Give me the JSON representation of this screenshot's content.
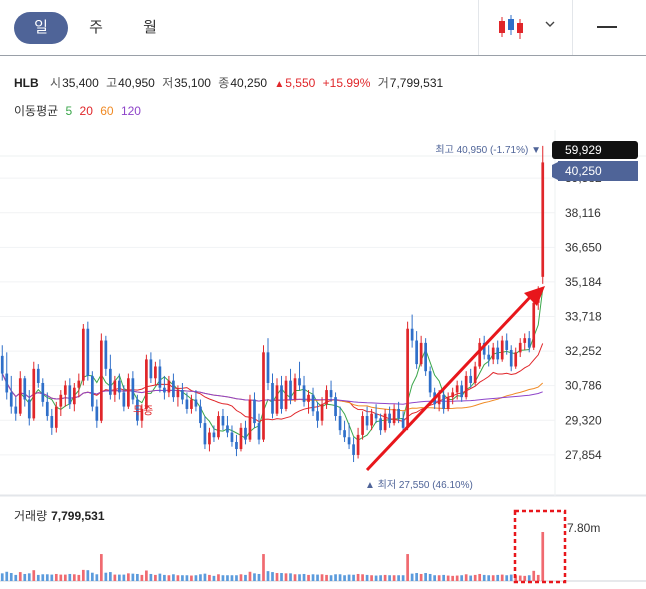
{
  "tabs": [
    {
      "label": "일",
      "active": true
    },
    {
      "label": "주",
      "active": false
    },
    {
      "label": "월",
      "active": false
    }
  ],
  "toolbar": {
    "chart_type_icon": "candlestick-icon",
    "dropdown_icon": "chevron-down-icon",
    "menu_icon": "minus-icon"
  },
  "stock": {
    "name": "HLB",
    "open_label": "시",
    "open": "35,400",
    "high_label": "고",
    "high": "40,950",
    "low_label": "저",
    "low": "35,100",
    "close_label": "종",
    "close": "40,250",
    "change_arrow": "▲",
    "change": "5,550",
    "change_pct": "+15.99%",
    "volume_label": "거",
    "volume": "7,799,531"
  },
  "moving_average": {
    "label": "이동평균",
    "periods": [
      {
        "text": "5",
        "color": "#3aa64a"
      },
      {
        "text": "20",
        "color": "#e0262a"
      },
      {
        "text": "60",
        "color": "#f08a24"
      },
      {
        "text": "120",
        "color": "#8e44c9"
      }
    ]
  },
  "price_axis": {
    "ticks": [
      "39,582",
      "38,116",
      "36,650",
      "35,184",
      "33,718",
      "32,252",
      "30,786",
      "29,320",
      "27,854"
    ],
    "top_badge": "59,929",
    "current_badge": "40,250"
  },
  "annotations": {
    "max_label": "최고 40,950 (-1.71%) ▼",
    "min_label": "▲ 최저 27,550 (46.10%)",
    "no_increase_label": "무증"
  },
  "volume": {
    "label": "거래량",
    "value": "7,799,531",
    "axis_label": "7.80m"
  },
  "colors": {
    "up": "#f06a70",
    "down": "#2f6fc9",
    "accent": "#4f6498",
    "highlight": "#e0262a"
  },
  "chart_data": {
    "type": "candlestick",
    "y_range": [
      27000,
      41200
    ],
    "candles": [
      [
        32050,
        32500,
        31000,
        31300
      ],
      [
        31300,
        32200,
        30200,
        30500
      ],
      [
        30500,
        31200,
        29600,
        29900
      ],
      [
        29900,
        30300,
        29300,
        29600
      ],
      [
        29600,
        31400,
        29500,
        31100
      ],
      [
        31100,
        31200,
        29900,
        30200
      ],
      [
        30200,
        30600,
        29100,
        29400
      ],
      [
        29400,
        31800,
        29300,
        31500
      ],
      [
        31500,
        31700,
        30700,
        30900
      ],
      [
        30900,
        31100,
        29900,
        30100
      ],
      [
        30100,
        30500,
        29300,
        29500
      ],
      [
        29500,
        29800,
        28700,
        29000
      ],
      [
        29000,
        30100,
        28800,
        29900
      ],
      [
        29900,
        30600,
        29500,
        30400
      ],
      [
        30400,
        31000,
        29900,
        30800
      ],
      [
        30800,
        31100,
        29800,
        30000
      ],
      [
        30000,
        30900,
        29700,
        30700
      ],
      [
        30700,
        31300,
        30300,
        31000
      ],
      [
        31000,
        33400,
        30800,
        33200
      ],
      [
        33200,
        33500,
        31000,
        31200
      ],
      [
        31200,
        31400,
        29700,
        29900
      ],
      [
        29900,
        30200,
        29000,
        29300
      ],
      [
        29300,
        33000,
        29200,
        32700
      ],
      [
        32700,
        32900,
        31200,
        31500
      ],
      [
        31500,
        32100,
        30200,
        30400
      ],
      [
        30400,
        31200,
        30100,
        31000
      ],
      [
        31000,
        31300,
        30200,
        30500
      ],
      [
        30500,
        30800,
        29700,
        29900
      ],
      [
        29900,
        31300,
        29800,
        31100
      ],
      [
        31100,
        31400,
        30000,
        30200
      ],
      [
        30200,
        30400,
        29100,
        29300
      ],
      [
        29300,
        30000,
        29000,
        29800
      ],
      [
        29800,
        32100,
        29700,
        31900
      ],
      [
        31900,
        32200,
        30900,
        31100
      ],
      [
        31100,
        31800,
        30800,
        31600
      ],
      [
        31600,
        31900,
        30500,
        30700
      ],
      [
        30700,
        31200,
        30200,
        30500
      ],
      [
        30500,
        31200,
        30300,
        31000
      ],
      [
        31000,
        31300,
        30100,
        30300
      ],
      [
        30300,
        30800,
        29900,
        30600
      ],
      [
        30600,
        30900,
        30000,
        30200
      ],
      [
        30200,
        30500,
        29600,
        29800
      ],
      [
        29800,
        30400,
        29600,
        30200
      ],
      [
        30200,
        30600,
        29700,
        29900
      ],
      [
        29900,
        30200,
        29000,
        29200
      ],
      [
        29200,
        29500,
        28100,
        28300
      ],
      [
        28300,
        29000,
        28000,
        28800
      ],
      [
        28800,
        29100,
        28400,
        28600
      ],
      [
        28600,
        29700,
        28500,
        29500
      ],
      [
        29500,
        29800,
        28900,
        29100
      ],
      [
        29100,
        29500,
        28600,
        28800
      ],
      [
        28800,
        29100,
        28200,
        28400
      ],
      [
        28400,
        28700,
        27800,
        28100
      ],
      [
        28100,
        29200,
        28000,
        29000
      ],
      [
        29000,
        29300,
        28300,
        28500
      ],
      [
        28500,
        30400,
        28400,
        30200
      ],
      [
        30200,
        30500,
        29000,
        29200
      ],
      [
        29200,
        29600,
        28300,
        28500
      ],
      [
        28500,
        32500,
        28400,
        32200
      ],
      [
        32200,
        32800,
        30600,
        30900
      ],
      [
        30900,
        31300,
        29400,
        29600
      ],
      [
        29600,
        31100,
        29500,
        30800
      ],
      [
        30800,
        31200,
        29600,
        29800
      ],
      [
        29800,
        31200,
        29700,
        31000
      ],
      [
        31000,
        31500,
        30000,
        30200
      ],
      [
        30200,
        31300,
        30100,
        31100
      ],
      [
        31100,
        31800,
        30600,
        30800
      ],
      [
        30800,
        31200,
        29900,
        30100
      ],
      [
        30100,
        30600,
        29600,
        30400
      ],
      [
        30400,
        30700,
        29500,
        29700
      ],
      [
        29700,
        30100,
        29000,
        29300
      ],
      [
        29300,
        30300,
        29100,
        30000
      ],
      [
        30000,
        30800,
        29800,
        30600
      ],
      [
        30600,
        31000,
        30100,
        30300
      ],
      [
        30300,
        30500,
        29300,
        29500
      ],
      [
        29500,
        29900,
        28700,
        28900
      ],
      [
        28900,
        29300,
        28400,
        28600
      ],
      [
        28600,
        29200,
        28100,
        28300
      ],
      [
        28300,
        28600,
        27550,
        27850
      ],
      [
        27850,
        29000,
        27700,
        28700
      ],
      [
        28700,
        29700,
        28500,
        29500
      ],
      [
        29500,
        29900,
        28900,
        29100
      ],
      [
        29100,
        29800,
        28900,
        29600
      ],
      [
        29600,
        30000,
        29200,
        29400
      ],
      [
        29400,
        29600,
        28700,
        28900
      ],
      [
        28900,
        29800,
        28800,
        29600
      ],
      [
        29600,
        29900,
        29000,
        29200
      ],
      [
        29200,
        30000,
        29100,
        29800
      ],
      [
        29800,
        30100,
        29200,
        29400
      ],
      [
        29400,
        29700,
        28800,
        29000
      ],
      [
        29000,
        33500,
        28900,
        33200
      ],
      [
        33200,
        33800,
        32400,
        32700
      ],
      [
        32700,
        33100,
        31500,
        31700
      ],
      [
        31700,
        32900,
        31600,
        32600
      ],
      [
        32600,
        32800,
        31200,
        31400
      ],
      [
        31400,
        31600,
        30300,
        30500
      ],
      [
        30500,
        30700,
        29800,
        30000
      ],
      [
        30000,
        30600,
        29700,
        30400
      ],
      [
        30400,
        30600,
        29600,
        29800
      ],
      [
        29800,
        30500,
        29700,
        30300
      ],
      [
        30300,
        30700,
        30000,
        30500
      ],
      [
        30500,
        31000,
        30200,
        30800
      ],
      [
        30800,
        31000,
        30100,
        30300
      ],
      [
        30300,
        31400,
        30200,
        31200
      ],
      [
        31200,
        31500,
        30700,
        30900
      ],
      [
        30900,
        31800,
        30800,
        31600
      ],
      [
        31600,
        32800,
        31500,
        32600
      ],
      [
        32600,
        32900,
        31900,
        32100
      ],
      [
        32100,
        32500,
        31600,
        31900
      ],
      [
        31900,
        32600,
        31700,
        32400
      ],
      [
        32400,
        32700,
        31700,
        31900
      ],
      [
        31900,
        32900,
        31800,
        32700
      ],
      [
        32700,
        33000,
        32100,
        32300
      ],
      [
        32300,
        32500,
        31400,
        31600
      ],
      [
        31600,
        32400,
        31500,
        32200
      ],
      [
        32200,
        32800,
        32000,
        32600
      ],
      [
        32600,
        33000,
        32300,
        32800
      ],
      [
        32800,
        33100,
        32200,
        32400
      ],
      [
        32400,
        34600,
        32300,
        34300
      ],
      [
        34300,
        35000,
        34000,
        34700
      ],
      [
        35400,
        40950,
        35100,
        40250
      ]
    ],
    "volume_max_m": 7.8
  }
}
